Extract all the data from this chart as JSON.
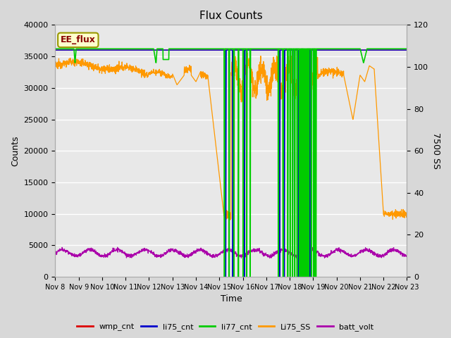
{
  "title": "Flux Counts",
  "xlabel": "Time",
  "ylabel_left": "Counts",
  "ylabel_right": "7500 SS",
  "annotation": "EE_flux",
  "ylim_left": [
    0,
    40000
  ],
  "ylim_right": [
    0,
    120
  ],
  "xtick_labels": [
    "Nov 8",
    "Nov 9",
    "Nov 10",
    "Nov 11",
    "Nov 12",
    "Nov 13",
    "Nov 14",
    "Nov 15",
    "Nov 16",
    "Nov 17",
    "Nov 18",
    "Nov 19",
    "Nov 20",
    "Nov 21",
    "Nov 22",
    "Nov 23"
  ],
  "yticks_left": [
    0,
    5000,
    10000,
    15000,
    20000,
    25000,
    30000,
    35000,
    40000
  ],
  "yticks_right": [
    0,
    20,
    40,
    60,
    80,
    100,
    120
  ],
  "bg_color": "#d8d8d8",
  "plot_bg_color": "#e8e8e8",
  "legend_entries": [
    "wmp_cnt",
    "li75_cnt",
    "li77_cnt",
    "Li75_SS",
    "batt_volt"
  ],
  "legend_colors": [
    "#dd0000",
    "#0000cc",
    "#00cc00",
    "#ff9900",
    "#aa00aa"
  ],
  "figsize": [
    6.4,
    4.8
  ],
  "dpi": 100
}
